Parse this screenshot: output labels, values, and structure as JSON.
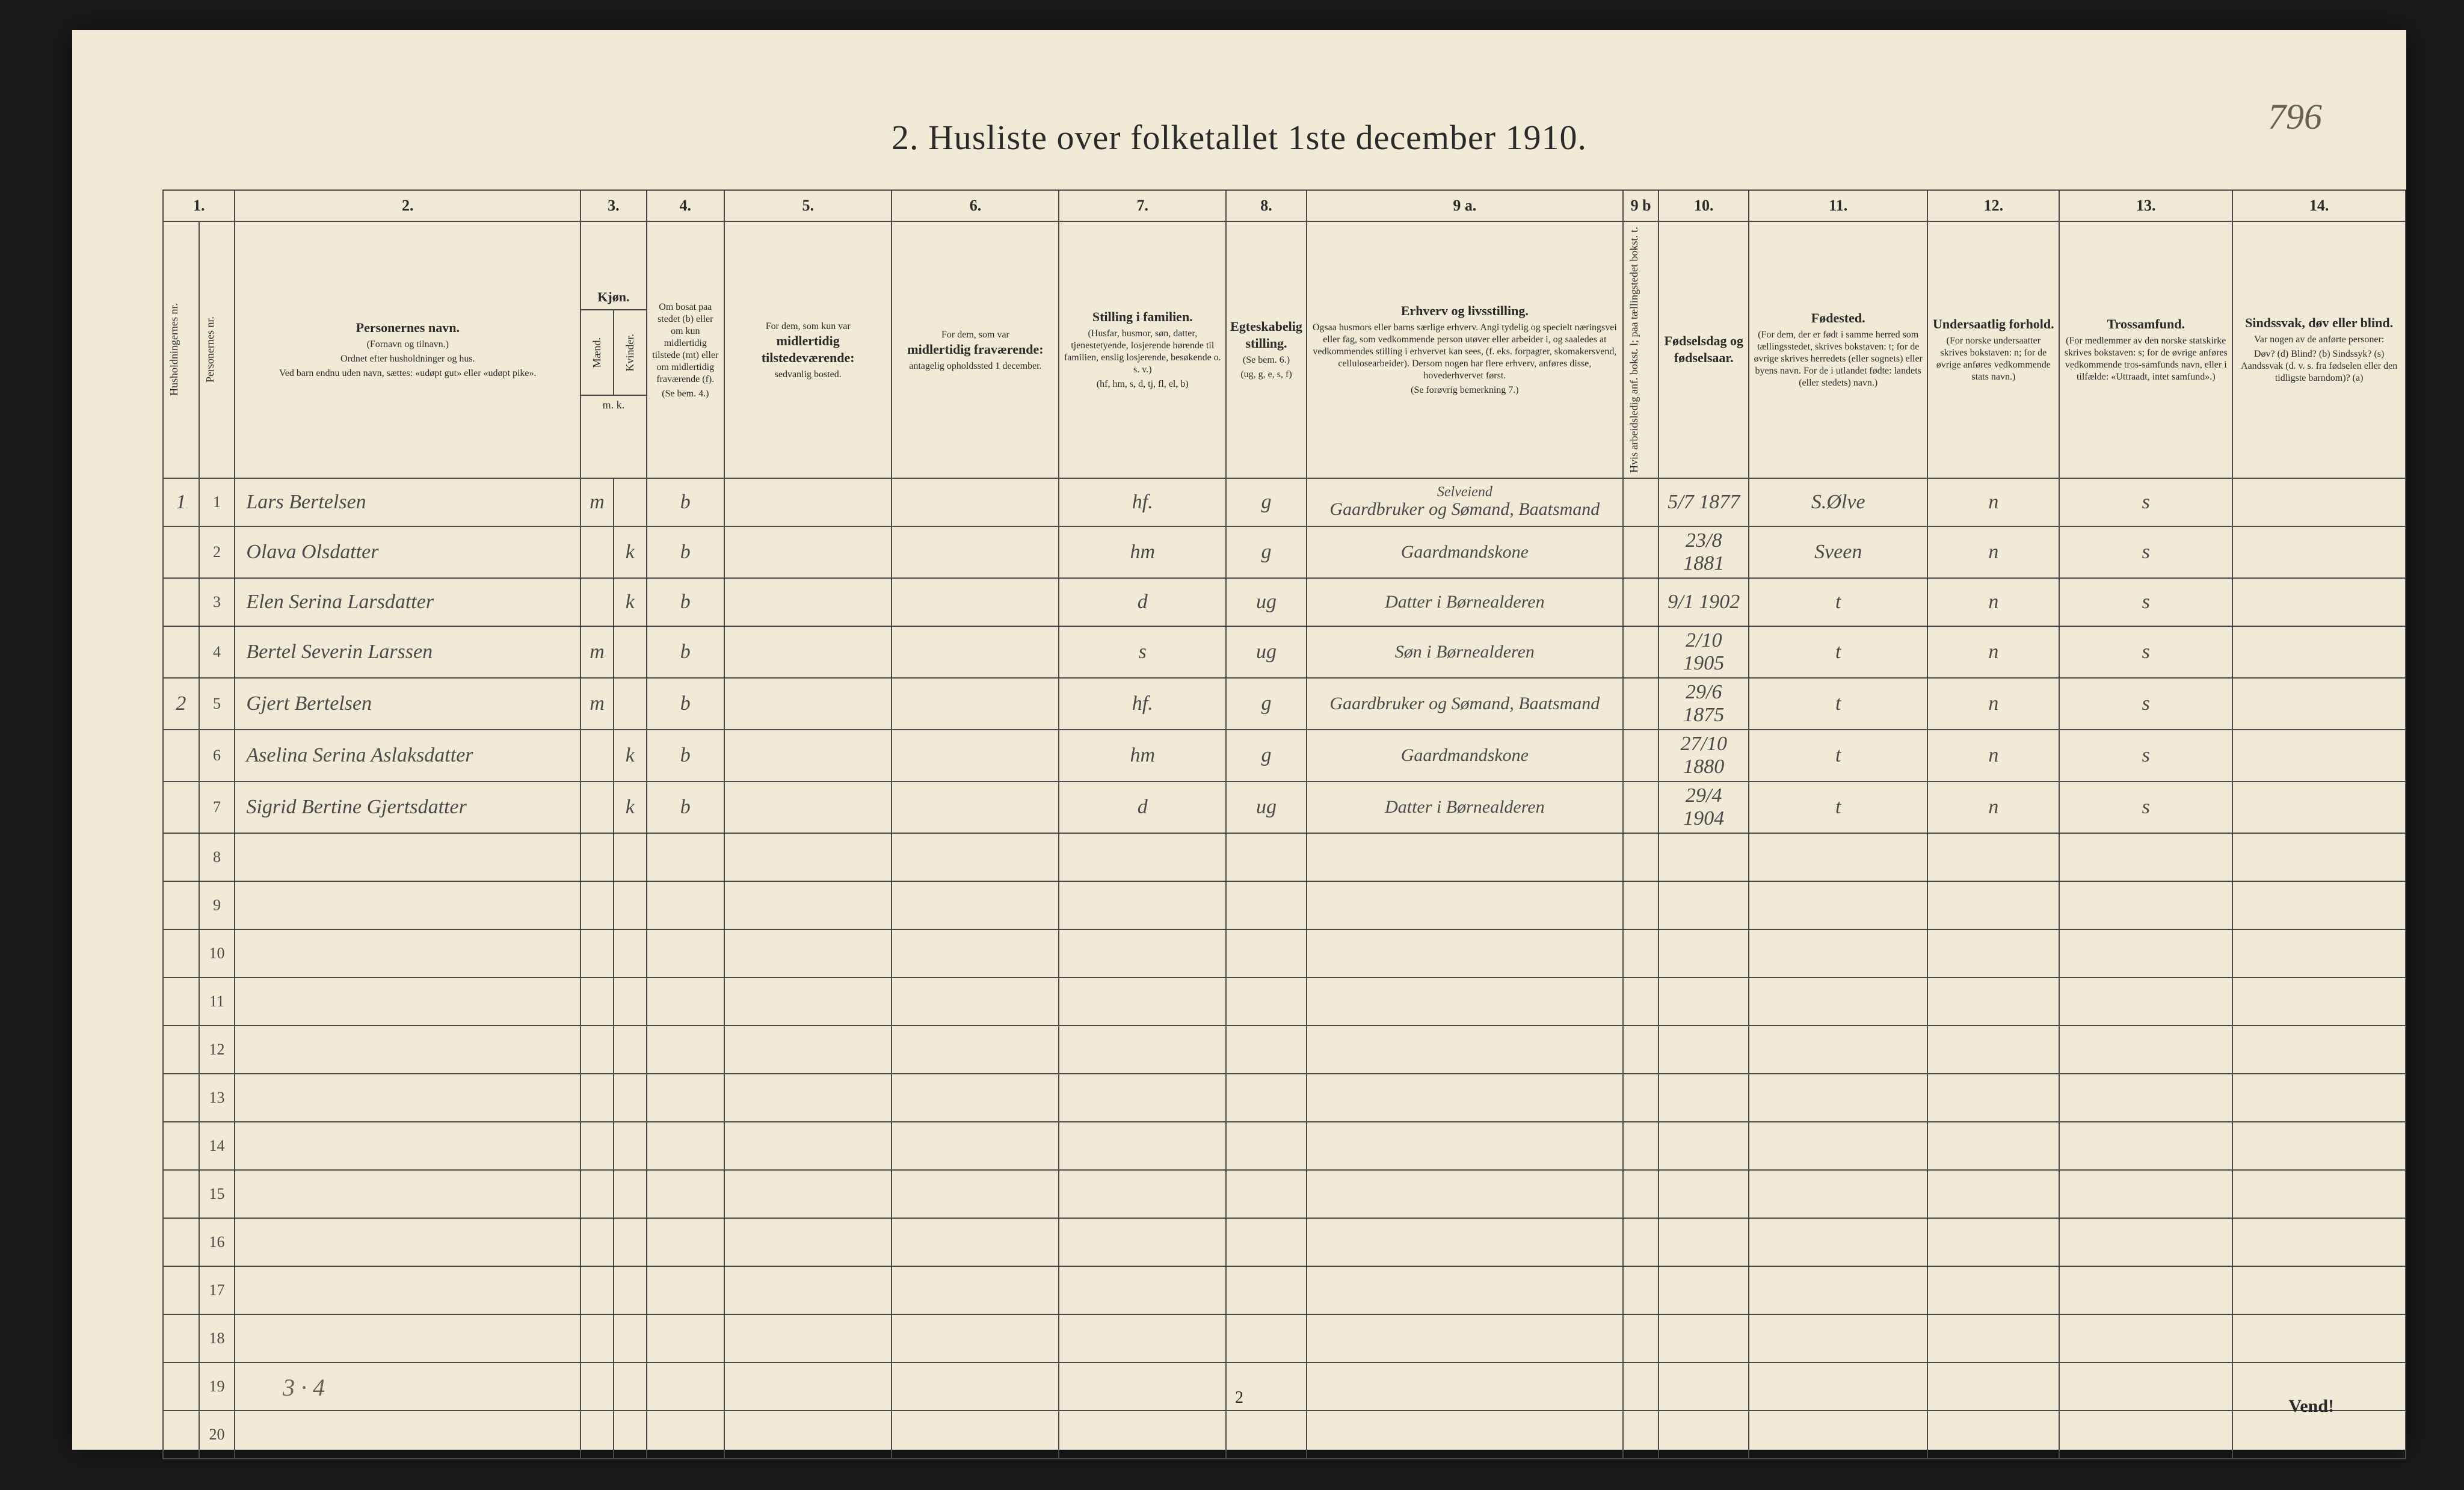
{
  "page_number_handwritten": "796",
  "title": "2.  Husliste over folketallet 1ste december 1910.",
  "footer_page": "2",
  "vend": "Vend!",
  "tally": "3 · 4",
  "header_nums": [
    "1.",
    "2.",
    "3.",
    "4.",
    "5.",
    "6.",
    "7.",
    "8.",
    "9 a.",
    "9 b",
    "10.",
    "11.",
    "12.",
    "13.",
    "14."
  ],
  "headers": {
    "c1_c1b": {
      "l1": "Husholdningernes nr.",
      "l2": "Personernes nr."
    },
    "c2": {
      "bold": "Personernes navn.",
      "l1": "(Fornavn og tilnavn.)",
      "l2": "Ordnet efter husholdninger og hus.",
      "l3": "Ved barn endnu uden navn, sættes: «udøpt gut» eller «udøpt pike»."
    },
    "c3": {
      "bold": "Kjøn.",
      "sub_m": "Mænd.",
      "sub_k": "Kvinder.",
      "mk": "m.   k."
    },
    "c4": {
      "l1": "Om bosat paa stedet (b) eller om kun midlertidig tilstede (mt) eller om midlertidig fraværende (f).",
      "l2": "(Se bem. 4.)"
    },
    "c5": {
      "l1": "For dem, som kun var",
      "bold": "midlertidig tilstedeværende:",
      "l2": "sedvanlig bosted."
    },
    "c6": {
      "l1": "For dem, som var",
      "bold": "midlertidig fraværende:",
      "l2": "antagelig opholdssted 1 december."
    },
    "c7": {
      "bold": "Stilling i familien.",
      "l1": "(Husfar, husmor, søn, datter, tjenestetyende, losjerende hørende til familien, enslig losjerende, besøkende o. s. v.)",
      "l2": "(hf, hm, s, d, tj, fl, el, b)"
    },
    "c8": {
      "bold": "Egteskabelig stilling.",
      "l1": "(Se bem. 6.)",
      "l2": "(ug, g, e, s, f)"
    },
    "c9a": {
      "bold": "Erhverv og livsstilling.",
      "l1": "Ogsaa husmors eller barns særlige erhverv. Angi tydelig og specielt næringsvei eller fag, som vedkommende person utøver eller arbeider i, og saaledes at vedkommendes stilling i erhvervet kan sees, (f. eks. forpagter, skomakersvend, cellulosearbeider). Dersom nogen har flere erhverv, anføres disse, hovederhvervet først.",
      "l2": "(Se forøvrig bemerkning 7.)"
    },
    "c9b": {
      "vert": "Hvis arbeidsledig anf. bokst. l; paa tællingstedet bokst. t."
    },
    "c10": {
      "bold": "Fødselsdag og fødselsaar."
    },
    "c11": {
      "bold": "Fødested.",
      "l1": "(For dem, der er født i samme herred som tællingsstedet, skrives bokstaven: t; for de øvrige skrives herredets (eller sognets) eller byens navn. For de i utlandet fødte: landets (eller stedets) navn.)"
    },
    "c12": {
      "bold": "Undersaatlig forhold.",
      "l1": "(For norske undersaatter skrives bokstaven: n; for de øvrige anføres vedkommende stats navn.)"
    },
    "c13": {
      "bold": "Trossamfund.",
      "l1": "(For medlemmer av den norske statskirke skrives bokstaven: s; for de øvrige anføres vedkommende tros-samfunds navn, eller i tilfælde: «Uttraadt, intet samfund».)"
    },
    "c14": {
      "bold": "Sindssvak, døv eller blind.",
      "l1": "Var nogen av de anførte personer:",
      "l2": "Døv? (d)  Blind? (b)  Sindssyk? (s)  Aandssvak (d. v. s. fra fødselen eller den tidligste barndom)? (a)"
    }
  },
  "rows": [
    {
      "hh": "1",
      "p": "1",
      "name": "Lars Bertelsen",
      "m": "m",
      "k": "",
      "res": "b",
      "c5": "",
      "c6": "",
      "fam": "hf.",
      "civ": "g",
      "occ_top": "Selveiend",
      "occ": "Gaardbruker og Sømand, Baatsmand",
      "c9b": "",
      "dob": "5/7 1877",
      "birthplace": "S.Ølve",
      "nat": "n",
      "rel": "s",
      "c14": ""
    },
    {
      "hh": "",
      "p": "2",
      "name": "Olava Olsdatter",
      "m": "",
      "k": "k",
      "res": "b",
      "c5": "",
      "c6": "",
      "fam": "hm",
      "civ": "g",
      "occ_top": "",
      "occ": "Gaardmandskone",
      "c9b": "",
      "dob": "23/8 1881",
      "birthplace": "Sveen",
      "nat": "n",
      "rel": "s",
      "c14": ""
    },
    {
      "hh": "",
      "p": "3",
      "name": "Elen Serina Larsdatter",
      "m": "",
      "k": "k",
      "res": "b",
      "c5": "",
      "c6": "",
      "fam": "d",
      "civ": "ug",
      "occ_top": "",
      "occ": "Datter i Børnealderen",
      "c9b": "",
      "dob": "9/1 1902",
      "birthplace": "t",
      "nat": "n",
      "rel": "s",
      "c14": ""
    },
    {
      "hh": "",
      "p": "4",
      "name": "Bertel Severin Larssen",
      "m": "m",
      "k": "",
      "res": "b",
      "c5": "",
      "c6": "",
      "fam": "s",
      "civ": "ug",
      "occ_top": "",
      "occ": "Søn i Børnealderen",
      "c9b": "",
      "dob": "2/10 1905",
      "birthplace": "t",
      "nat": "n",
      "rel": "s",
      "c14": ""
    },
    {
      "hh": "2",
      "p": "5",
      "name": "Gjert Bertelsen",
      "m": "m",
      "k": "",
      "res": "b",
      "c5": "",
      "c6": "",
      "fam": "hf.",
      "civ": "g",
      "occ_top": "",
      "occ": "Gaardbruker og Sømand, Baatsmand",
      "c9b": "",
      "dob": "29/6 1875",
      "birthplace": "t",
      "nat": "n",
      "rel": "s",
      "c14": ""
    },
    {
      "hh": "",
      "p": "6",
      "name": "Aselina Serina Aslaksdatter",
      "m": "",
      "k": "k",
      "res": "b",
      "c5": "",
      "c6": "",
      "fam": "hm",
      "civ": "g",
      "occ_top": "",
      "occ": "Gaardmandskone",
      "c9b": "",
      "dob": "27/10 1880",
      "birthplace": "t",
      "nat": "n",
      "rel": "s",
      "c14": ""
    },
    {
      "hh": "",
      "p": "7",
      "name": "Sigrid Bertine Gjertsdatter",
      "m": "",
      "k": "k",
      "res": "b",
      "c5": "",
      "c6": "",
      "fam": "d",
      "civ": "ug",
      "occ_top": "",
      "occ": "Datter i Børnealderen",
      "c9b": "",
      "dob": "29/4 1904",
      "birthplace": "t",
      "nat": "n",
      "rel": "s",
      "c14": ""
    },
    {
      "hh": "",
      "p": "8",
      "name": "",
      "m": "",
      "k": "",
      "res": "",
      "c5": "",
      "c6": "",
      "fam": "",
      "civ": "",
      "occ_top": "",
      "occ": "",
      "c9b": "",
      "dob": "",
      "birthplace": "",
      "nat": "",
      "rel": "",
      "c14": ""
    },
    {
      "hh": "",
      "p": "9",
      "name": "",
      "m": "",
      "k": "",
      "res": "",
      "c5": "",
      "c6": "",
      "fam": "",
      "civ": "",
      "occ_top": "",
      "occ": "",
      "c9b": "",
      "dob": "",
      "birthplace": "",
      "nat": "",
      "rel": "",
      "c14": ""
    },
    {
      "hh": "",
      "p": "10",
      "name": "",
      "m": "",
      "k": "",
      "res": "",
      "c5": "",
      "c6": "",
      "fam": "",
      "civ": "",
      "occ_top": "",
      "occ": "",
      "c9b": "",
      "dob": "",
      "birthplace": "",
      "nat": "",
      "rel": "",
      "c14": ""
    },
    {
      "hh": "",
      "p": "11",
      "name": "",
      "m": "",
      "k": "",
      "res": "",
      "c5": "",
      "c6": "",
      "fam": "",
      "civ": "",
      "occ_top": "",
      "occ": "",
      "c9b": "",
      "dob": "",
      "birthplace": "",
      "nat": "",
      "rel": "",
      "c14": ""
    },
    {
      "hh": "",
      "p": "12",
      "name": "",
      "m": "",
      "k": "",
      "res": "",
      "c5": "",
      "c6": "",
      "fam": "",
      "civ": "",
      "occ_top": "",
      "occ": "",
      "c9b": "",
      "dob": "",
      "birthplace": "",
      "nat": "",
      "rel": "",
      "c14": ""
    },
    {
      "hh": "",
      "p": "13",
      "name": "",
      "m": "",
      "k": "",
      "res": "",
      "c5": "",
      "c6": "",
      "fam": "",
      "civ": "",
      "occ_top": "",
      "occ": "",
      "c9b": "",
      "dob": "",
      "birthplace": "",
      "nat": "",
      "rel": "",
      "c14": ""
    },
    {
      "hh": "",
      "p": "14",
      "name": "",
      "m": "",
      "k": "",
      "res": "",
      "c5": "",
      "c6": "",
      "fam": "",
      "civ": "",
      "occ_top": "",
      "occ": "",
      "c9b": "",
      "dob": "",
      "birthplace": "",
      "nat": "",
      "rel": "",
      "c14": ""
    },
    {
      "hh": "",
      "p": "15",
      "name": "",
      "m": "",
      "k": "",
      "res": "",
      "c5": "",
      "c6": "",
      "fam": "",
      "civ": "",
      "occ_top": "",
      "occ": "",
      "c9b": "",
      "dob": "",
      "birthplace": "",
      "nat": "",
      "rel": "",
      "c14": ""
    },
    {
      "hh": "",
      "p": "16",
      "name": "",
      "m": "",
      "k": "",
      "res": "",
      "c5": "",
      "c6": "",
      "fam": "",
      "civ": "",
      "occ_top": "",
      "occ": "",
      "c9b": "",
      "dob": "",
      "birthplace": "",
      "nat": "",
      "rel": "",
      "c14": ""
    },
    {
      "hh": "",
      "p": "17",
      "name": "",
      "m": "",
      "k": "",
      "res": "",
      "c5": "",
      "c6": "",
      "fam": "",
      "civ": "",
      "occ_top": "",
      "occ": "",
      "c9b": "",
      "dob": "",
      "birthplace": "",
      "nat": "",
      "rel": "",
      "c14": ""
    },
    {
      "hh": "",
      "p": "18",
      "name": "",
      "m": "",
      "k": "",
      "res": "",
      "c5": "",
      "c6": "",
      "fam": "",
      "civ": "",
      "occ_top": "",
      "occ": "",
      "c9b": "",
      "dob": "",
      "birthplace": "",
      "nat": "",
      "rel": "",
      "c14": ""
    },
    {
      "hh": "",
      "p": "19",
      "name": "",
      "m": "",
      "k": "",
      "res": "",
      "c5": "",
      "c6": "",
      "fam": "",
      "civ": "",
      "occ_top": "",
      "occ": "",
      "c9b": "",
      "dob": "",
      "birthplace": "",
      "nat": "",
      "rel": "",
      "c14": ""
    },
    {
      "hh": "",
      "p": "20",
      "name": "",
      "m": "",
      "k": "",
      "res": "",
      "c5": "",
      "c6": "",
      "fam": "",
      "civ": "",
      "occ_top": "",
      "occ": "",
      "c9b": "",
      "dob": "",
      "birthplace": "",
      "nat": "",
      "rel": "",
      "c14": ""
    }
  ]
}
